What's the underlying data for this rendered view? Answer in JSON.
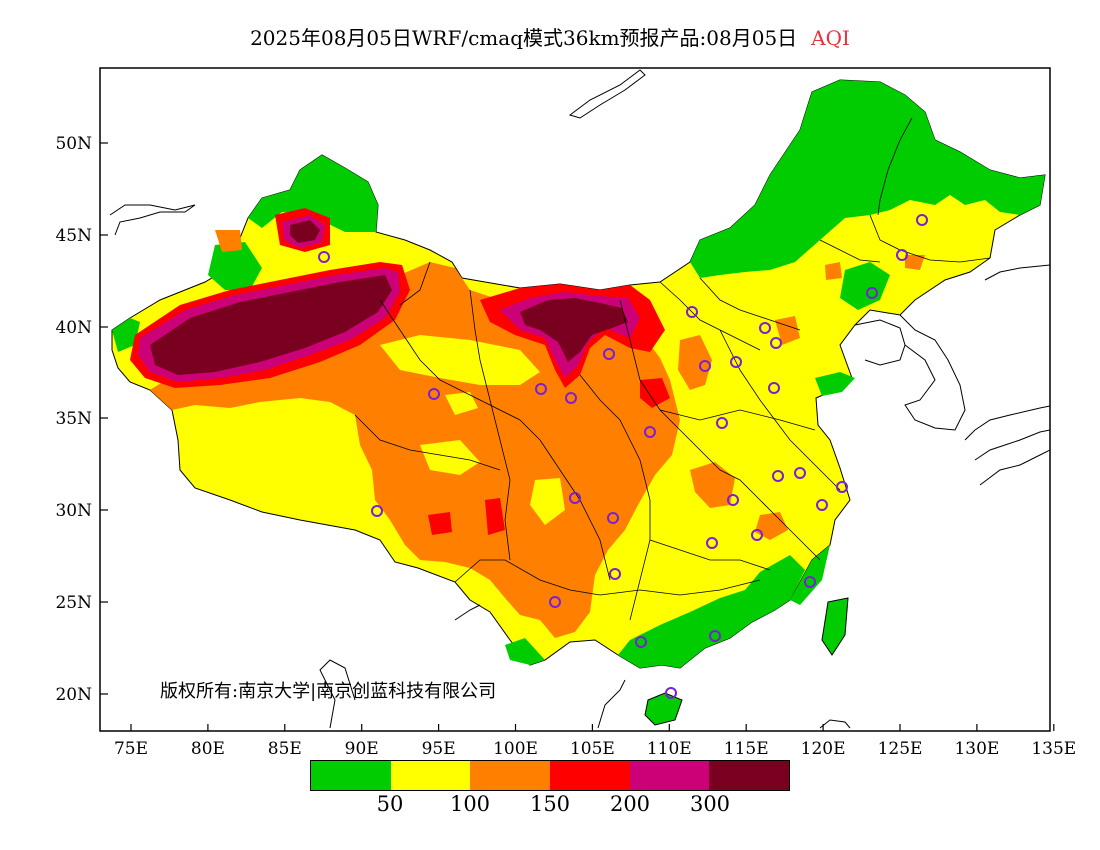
{
  "title": {
    "main": "2025年08月05日WRF/cmaq模式36km预报产品:08月05日",
    "variable": "AQI"
  },
  "copyright": "版权所有:南京大学|南京创蓝科技有限公司",
  "axes": {
    "lat_ticks": [
      "20N",
      "25N",
      "30N",
      "35N",
      "40N",
      "45N",
      "50N"
    ],
    "lon_ticks": [
      "75E",
      "80E",
      "85E",
      "90E",
      "95E",
      "100E",
      "105E",
      "110E",
      "115E",
      "120E",
      "125E",
      "130E",
      "135E"
    ]
  },
  "legend": {
    "colors": [
      "#00cc00",
      "#ffff00",
      "#ff8000",
      "#ff0000",
      "#cc0077",
      "#7a0020"
    ],
    "labels": [
      "50",
      "100",
      "150",
      "200",
      "300"
    ]
  },
  "colors": {
    "good": "#00cc00",
    "moderate": "#ffff00",
    "sensitive": "#ff8000",
    "unhealthy": "#ff0000",
    "very_unhealthy": "#cc0077",
    "hazardous": "#7a0020",
    "station_marker": "#7a1fd6"
  }
}
